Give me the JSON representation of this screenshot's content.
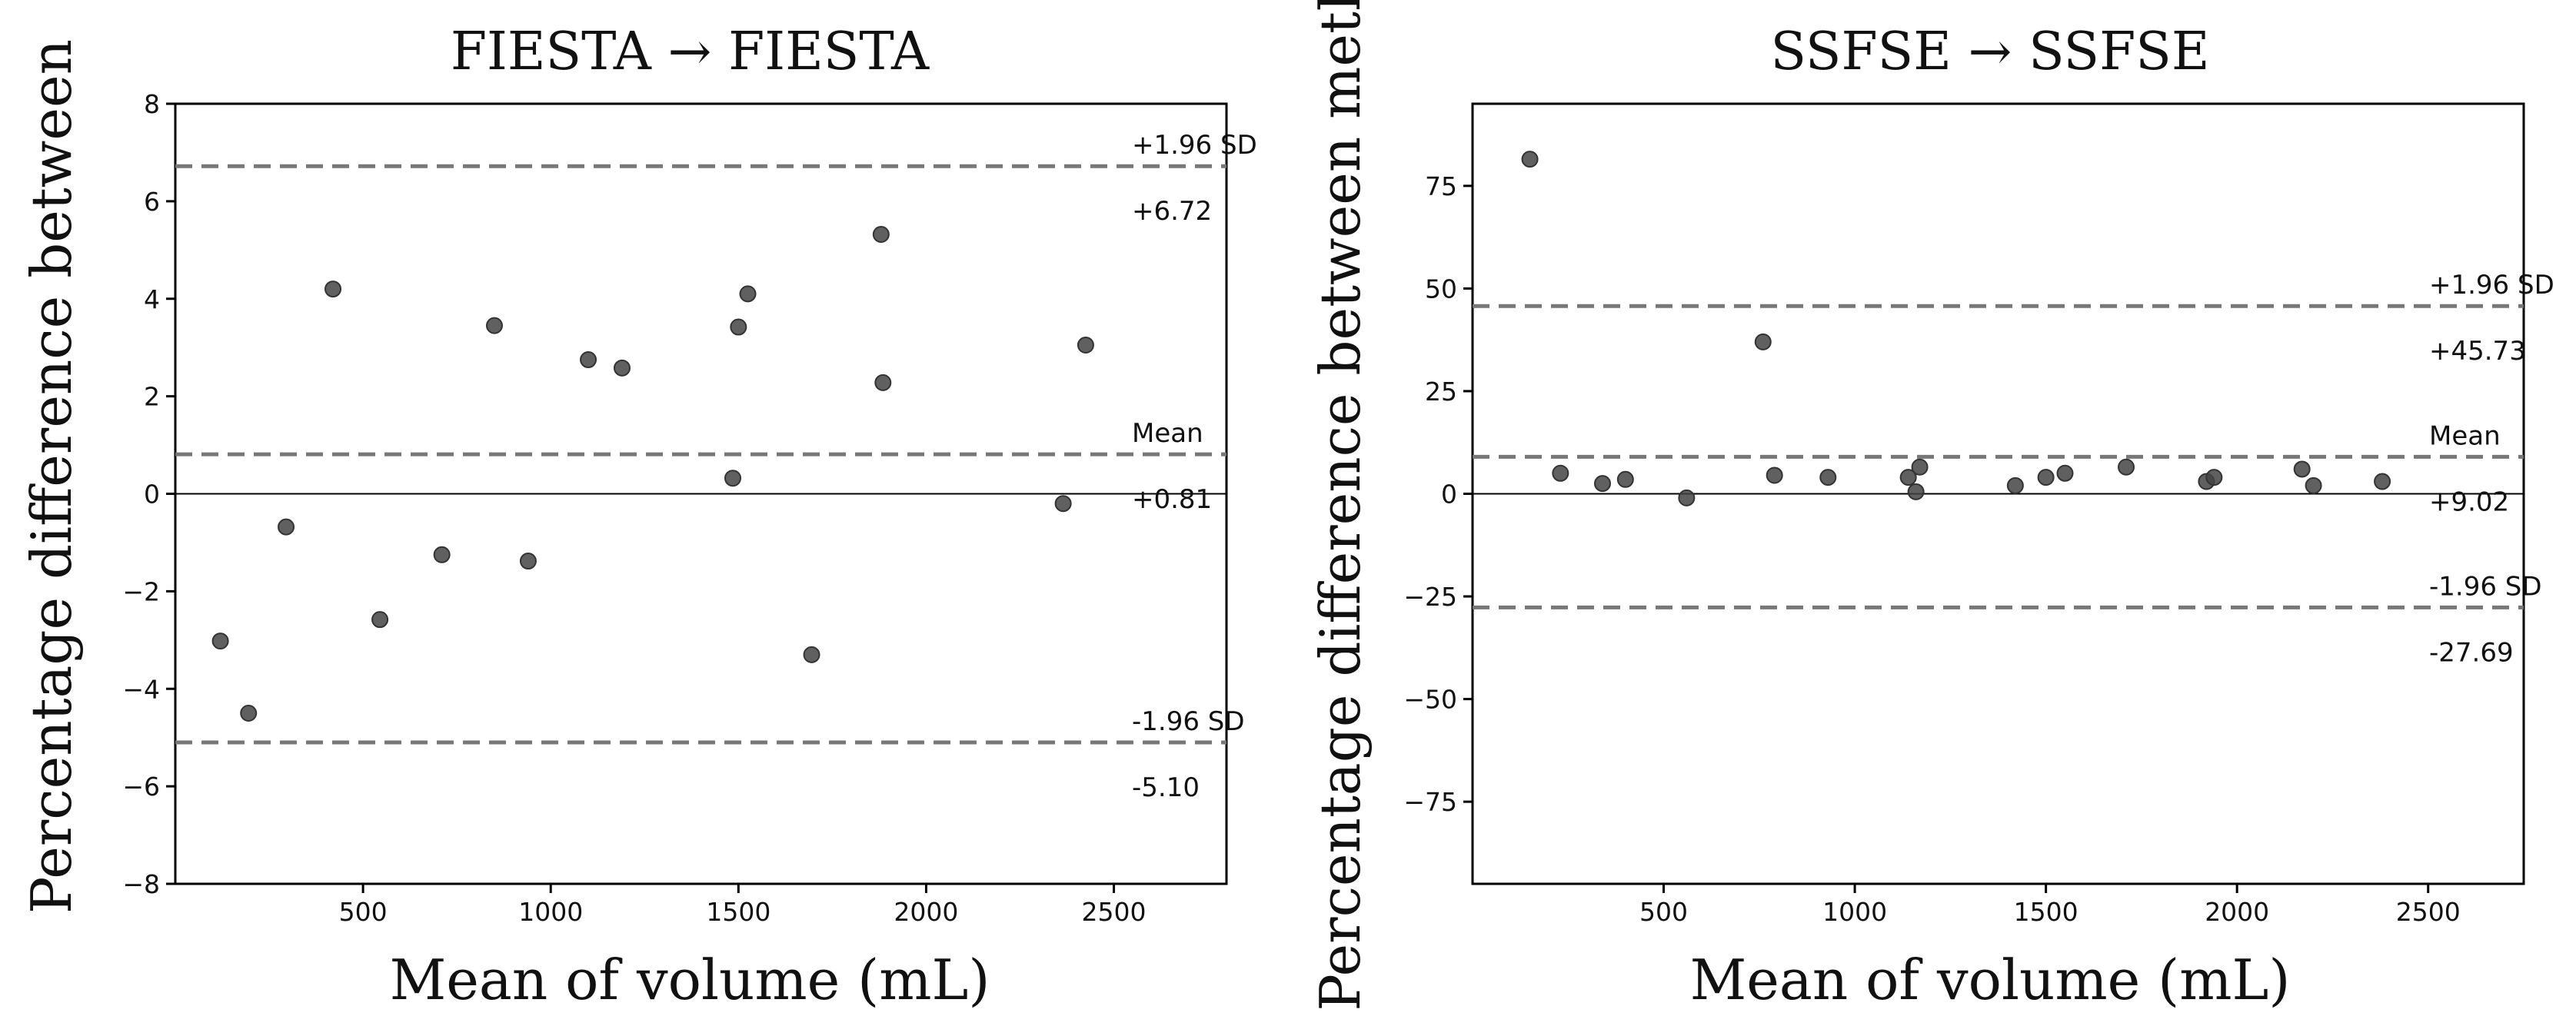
{
  "chart_data": [
    {
      "type": "scatter",
      "title": "FIESTA → FIESTA",
      "xlabel": "Mean of volume (mL)",
      "ylabel": "Percentage difference between",
      "xlim": [
        0,
        2800
      ],
      "ylim": [
        -8,
        8
      ],
      "xticks": [
        500,
        1000,
        1500,
        2000,
        2500
      ],
      "yticks": [
        -8,
        -6,
        -4,
        -2,
        0,
        2,
        4,
        6,
        8
      ],
      "x": [
        120,
        195,
        295,
        420,
        545,
        710,
        850,
        940,
        1100,
        1190,
        1485,
        1500,
        1525,
        1695,
        1880,
        1885,
        2365,
        2425
      ],
      "y": [
        -3.02,
        -4.5,
        -0.68,
        4.2,
        -2.58,
        -1.25,
        3.45,
        -1.38,
        2.75,
        2.58,
        0.32,
        3.42,
        4.1,
        -3.3,
        5.32,
        2.28,
        -0.2,
        3.05
      ],
      "reference_lines": [
        {
          "name": "upper",
          "label": "+1.96 SD",
          "value": 6.72,
          "value_label": "+6.72"
        },
        {
          "name": "mean",
          "label": "Mean",
          "value": 0.81,
          "value_label": "+0.81"
        },
        {
          "name": "lower",
          "label": "-1.96 SD",
          "value": -5.1,
          "value_label": "-5.10"
        }
      ],
      "zero_line": 0
    },
    {
      "type": "scatter",
      "title": "SSFSE → SSFSE",
      "xlabel": "Mean of volume (mL)",
      "ylabel": "Percentage difference between meth-",
      "xlim": [
        0,
        2750
      ],
      "ylim": [
        -95,
        95
      ],
      "xticks": [
        500,
        1000,
        1500,
        2000,
        2500
      ],
      "yticks": [
        -75,
        -50,
        -25,
        0,
        25,
        50,
        75
      ],
      "x": [
        150,
        230,
        340,
        400,
        560,
        760,
        790,
        930,
        1140,
        1160,
        1170,
        1420,
        1500,
        1550,
        1710,
        1920,
        1940,
        2170,
        2200,
        2380
      ],
      "y": [
        81.5,
        5,
        2.5,
        3.5,
        -1,
        37,
        4.5,
        4,
        4,
        0.5,
        6.5,
        2,
        4,
        5,
        6.5,
        3,
        4,
        6,
        2,
        3
      ],
      "reference_lines": [
        {
          "name": "upper",
          "label": "+1.96 SD",
          "value": 45.73,
          "value_label": "+45.73"
        },
        {
          "name": "mean",
          "label": "Mean",
          "value": 9.02,
          "value_label": "+9.02"
        },
        {
          "name": "lower",
          "label": "-1.96 SD",
          "value": -27.69,
          "value_label": "-27.69"
        }
      ],
      "zero_line": 0
    }
  ]
}
